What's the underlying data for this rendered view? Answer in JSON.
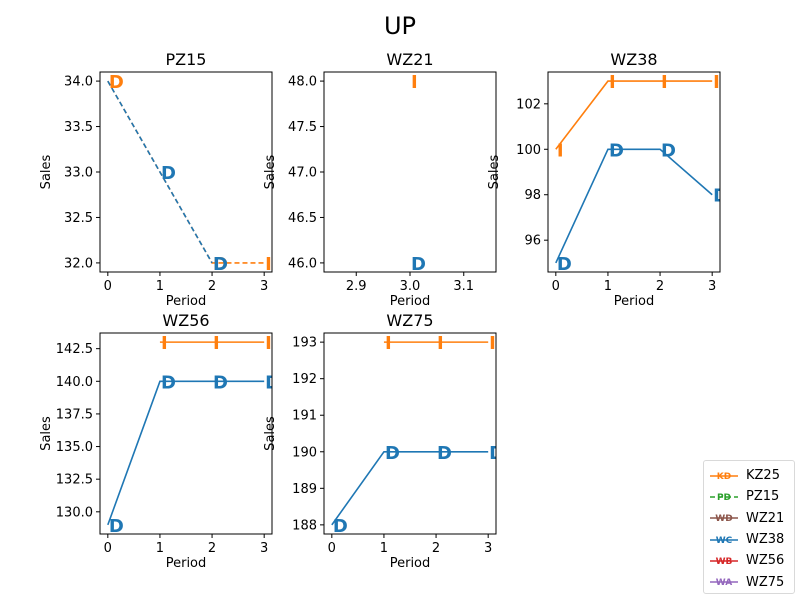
{
  "figure": {
    "title": "UP"
  },
  "colors": {
    "sold": "#ff7f0e",
    "demand": "#1f77b4",
    "pz15_line": "#2ca02c",
    "wz21": "#8c564b",
    "wz38": "#1f77b4",
    "wz56": "#d62728",
    "wz75": "#9467bd"
  },
  "chart_data": [
    {
      "type": "line",
      "title": "PZ15",
      "xlabel": "Period",
      "ylabel": "Sales",
      "xlim": [
        -0.15,
        3.15
      ],
      "ylim": [
        31.9,
        34.1
      ],
      "xticks": [
        0,
        1,
        2,
        3
      ],
      "yticks": [
        32.0,
        32.5,
        33.0,
        33.5,
        34.0
      ],
      "ytick_labels": [
        "32.0",
        "32.5",
        "33.0",
        "33.5",
        "34.0"
      ],
      "series": [
        {
          "x": [
            0,
            1,
            2,
            3
          ],
          "y": [
            34,
            33,
            32,
            32
          ],
          "style": "dashed",
          "color": "#ff7f0e",
          "markers": [
            {
              "x": 0,
              "y": 34,
              "label": "D"
            },
            {
              "x": 2,
              "y": 32,
              "label": "D"
            },
            {
              "x": 3,
              "y": 32,
              "label": "I"
            }
          ]
        },
        {
          "x": [
            0,
            1,
            2
          ],
          "y": [
            34,
            33,
            32
          ],
          "style": "dashed",
          "color": "#1f77b4",
          "markers": [
            {
              "x": 1,
              "y": 33,
              "label": "D"
            },
            {
              "x": 2,
              "y": 32,
              "label": "D"
            }
          ]
        }
      ]
    },
    {
      "type": "line",
      "title": "WZ21",
      "xlabel": "Period",
      "ylabel": "Sales",
      "xlim": [
        2.84,
        3.16
      ],
      "ylim": [
        45.9,
        48.1
      ],
      "xticks": [
        2.9,
        3.0,
        3.1
      ],
      "xtick_labels": [
        "2.9",
        "3.0",
        "3.1"
      ],
      "yticks": [
        46.0,
        46.5,
        47.0,
        47.5,
        48.0
      ],
      "ytick_labels": [
        "46.0",
        "46.5",
        "47.0",
        "47.5",
        "48.0"
      ],
      "series": [
        {
          "x": [
            3
          ],
          "y": [
            48
          ],
          "color": "#ff7f0e",
          "markers": [
            {
              "x": 3,
              "y": 48,
              "label": "I"
            }
          ]
        },
        {
          "x": [
            3
          ],
          "y": [
            46
          ],
          "color": "#1f77b4",
          "markers": [
            {
              "x": 3,
              "y": 46,
              "label": "D"
            }
          ]
        }
      ]
    },
    {
      "type": "line",
      "title": "WZ38",
      "xlabel": "Period",
      "ylabel": "Sales",
      "xlim": [
        -0.15,
        3.15
      ],
      "ylim": [
        94.6,
        103.4
      ],
      "xticks": [
        0,
        1,
        2,
        3
      ],
      "yticks": [
        96,
        98,
        100,
        102
      ],
      "ytick_labels": [
        "96",
        "98",
        "100",
        "102"
      ],
      "series": [
        {
          "x": [
            0,
            1,
            2,
            3
          ],
          "y": [
            100,
            103,
            103,
            103
          ],
          "color": "#ff7f0e",
          "markers": [
            {
              "x": 0,
              "y": 100,
              "label": "I"
            },
            {
              "x": 1,
              "y": 103,
              "label": "I"
            },
            {
              "x": 2,
              "y": 103,
              "label": "I"
            },
            {
              "x": 3,
              "y": 103,
              "label": "I"
            }
          ]
        },
        {
          "x": [
            0,
            1,
            2,
            3
          ],
          "y": [
            95,
            100,
            100,
            98
          ],
          "color": "#1f77b4",
          "markers": [
            {
              "x": 0,
              "y": 95,
              "label": "D"
            },
            {
              "x": 1,
              "y": 100,
              "label": "D"
            },
            {
              "x": 2,
              "y": 100,
              "label": "D"
            },
            {
              "x": 3,
              "y": 98,
              "label": "D"
            }
          ]
        }
      ]
    },
    {
      "type": "line",
      "title": "WZ56",
      "xlabel": "Period",
      "ylabel": "Sales",
      "xlim": [
        -0.15,
        3.15
      ],
      "ylim": [
        128.3,
        143.7
      ],
      "xticks": [
        0,
        1,
        2,
        3
      ],
      "yticks": [
        130.0,
        132.5,
        135.0,
        137.5,
        140.0,
        142.5
      ],
      "ytick_labels": [
        "130.0",
        "132.5",
        "135.0",
        "137.5",
        "140.0",
        "142.5"
      ],
      "series": [
        {
          "x": [
            1,
            2,
            3
          ],
          "y": [
            143,
            143,
            143
          ],
          "color": "#ff7f0e",
          "markers": [
            {
              "x": 1,
              "y": 143,
              "label": "I"
            },
            {
              "x": 2,
              "y": 143,
              "label": "I"
            },
            {
              "x": 3,
              "y": 143,
              "label": "I"
            }
          ]
        },
        {
          "x": [
            0,
            1,
            2,
            3
          ],
          "y": [
            129,
            140,
            140,
            140
          ],
          "color": "#1f77b4",
          "markers": [
            {
              "x": 0,
              "y": 129,
              "label": "D"
            },
            {
              "x": 1,
              "y": 140,
              "label": "D"
            },
            {
              "x": 2,
              "y": 140,
              "label": "D"
            },
            {
              "x": 3,
              "y": 140,
              "label": "D"
            }
          ]
        }
      ]
    },
    {
      "type": "line",
      "title": "WZ75",
      "xlabel": "Period",
      "ylabel": "Sales",
      "xlim": [
        -0.15,
        3.15
      ],
      "ylim": [
        187.75,
        193.25
      ],
      "xticks": [
        0,
        1,
        2,
        3
      ],
      "yticks": [
        188,
        189,
        190,
        191,
        192,
        193
      ],
      "ytick_labels": [
        "188",
        "189",
        "190",
        "191",
        "192",
        "193"
      ],
      "series": [
        {
          "x": [
            1,
            2,
            3
          ],
          "y": [
            193,
            193,
            193
          ],
          "color": "#ff7f0e",
          "markers": [
            {
              "x": 1,
              "y": 193,
              "label": "I"
            },
            {
              "x": 2,
              "y": 193,
              "label": "I"
            },
            {
              "x": 3,
              "y": 193,
              "label": "I"
            }
          ]
        },
        {
          "x": [
            0,
            1,
            2,
            3
          ],
          "y": [
            188,
            190,
            190,
            190
          ],
          "color": "#1f77b4",
          "markers": [
            {
              "x": 0,
              "y": 188,
              "label": "D"
            },
            {
              "x": 1,
              "y": 190,
              "label": "D"
            },
            {
              "x": 2,
              "y": 190,
              "label": "D"
            },
            {
              "x": 3,
              "y": 190,
              "label": "D"
            }
          ]
        }
      ]
    }
  ],
  "legend": {
    "placement": "bottom-right",
    "items": [
      {
        "label": "KZ25",
        "color": "#ff7f0e",
        "style": "solid",
        "badge": "KD"
      },
      {
        "label": "PZ15",
        "color": "#2ca02c",
        "style": "dashed",
        "badge": "PD"
      },
      {
        "label": "WZ21",
        "color": "#8c564b",
        "style": "solid",
        "badge": "WD"
      },
      {
        "label": "WZ38",
        "color": "#1f77b4",
        "style": "solid",
        "badge": "WC"
      },
      {
        "label": "WZ56",
        "color": "#d62728",
        "style": "solid",
        "badge": "WB"
      },
      {
        "label": "WZ75",
        "color": "#9467bd",
        "style": "solid",
        "badge": "WA"
      }
    ]
  }
}
